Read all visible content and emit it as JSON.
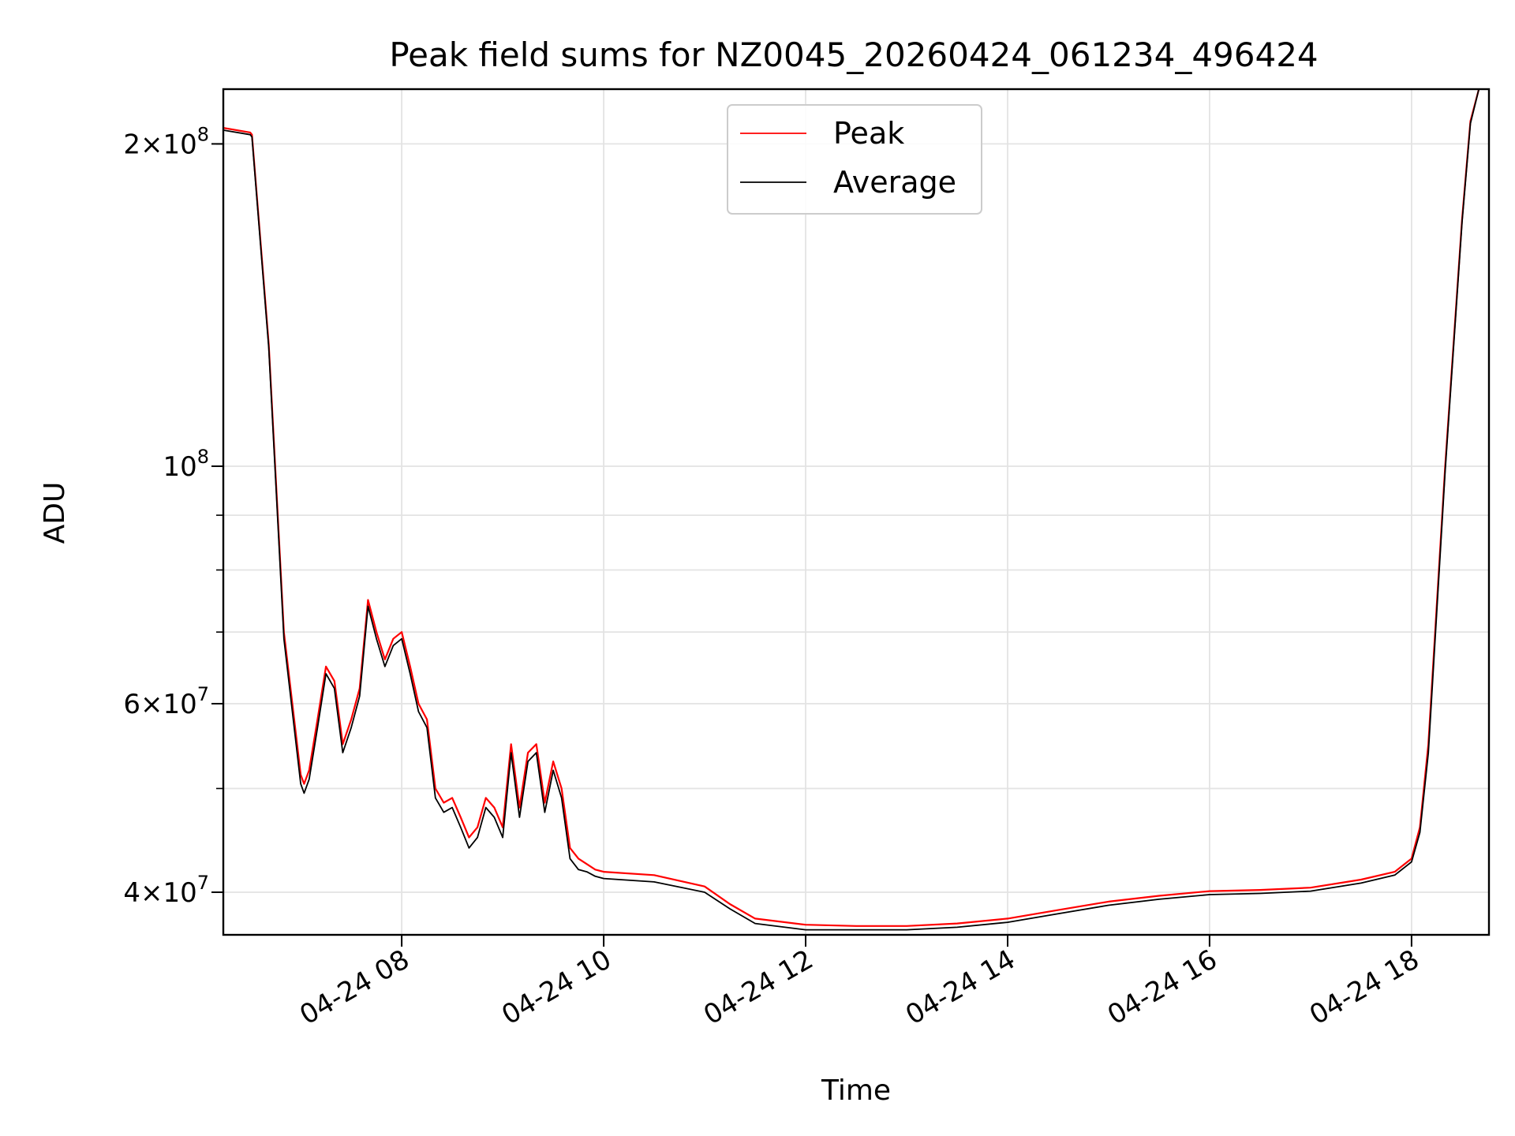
{
  "chart_data": {
    "type": "line",
    "title": "Peak field sums for NZ0045_20260424_061234_496424",
    "xlabel": "Time",
    "ylabel": "ADU",
    "y_scale": "log",
    "ylim": [
      36500000,
      225000000
    ],
    "xlim": [
      "2026-04-24 06:14",
      "2026-04-24 18:46"
    ],
    "x_ticks": [
      {
        "t": "2026-04-24 08:00",
        "label": "04-24 08"
      },
      {
        "t": "2026-04-24 10:00",
        "label": "04-24 10"
      },
      {
        "t": "2026-04-24 12:00",
        "label": "04-24 12"
      },
      {
        "t": "2026-04-24 14:00",
        "label": "04-24 14"
      },
      {
        "t": "2026-04-24 16:00",
        "label": "04-24 16"
      },
      {
        "t": "2026-04-24 18:00",
        "label": "04-24 18"
      }
    ],
    "y_major_ticks": [
      {
        "value": 200000000,
        "mantissa": "2",
        "exp": "8"
      },
      {
        "value": 100000000,
        "mantissa": "",
        "exp": "8"
      },
      {
        "value": 60000000,
        "mantissa": "6",
        "exp": "7"
      },
      {
        "value": 40000000,
        "mantissa": "4",
        "exp": "7"
      }
    ],
    "y_minor_ticks": [
      200000000,
      100000000,
      90000000,
      80000000,
      70000000,
      60000000,
      50000000,
      40000000
    ],
    "grid": true,
    "legend": "upper-center",
    "colors": {
      "peak": "#ff0000",
      "average": "#000000",
      "grid": "#e3e3e3"
    },
    "series": [
      {
        "name": "Peak",
        "color": "#ff0000",
        "x": [
          "2026-04-24 06:14",
          "2026-04-24 06:30",
          "2026-04-24 06:31",
          "2026-04-24 06:41",
          "2026-04-24 06:50",
          "2026-04-24 07:00",
          "2026-04-24 07:02",
          "2026-04-24 07:05",
          "2026-04-24 07:10",
          "2026-04-24 07:15",
          "2026-04-24 07:20",
          "2026-04-24 07:25",
          "2026-04-24 07:30",
          "2026-04-24 07:35",
          "2026-04-24 07:40",
          "2026-04-24 07:45",
          "2026-04-24 07:50",
          "2026-04-24 07:55",
          "2026-04-24 08:00",
          "2026-04-24 08:05",
          "2026-04-24 08:10",
          "2026-04-24 08:15",
          "2026-04-24 08:20",
          "2026-04-24 08:25",
          "2026-04-24 08:30",
          "2026-04-24 08:35",
          "2026-04-24 08:40",
          "2026-04-24 08:45",
          "2026-04-24 08:50",
          "2026-04-24 08:55",
          "2026-04-24 09:00",
          "2026-04-24 09:05",
          "2026-04-24 09:10",
          "2026-04-24 09:15",
          "2026-04-24 09:20",
          "2026-04-24 09:25",
          "2026-04-24 09:30",
          "2026-04-24 09:35",
          "2026-04-24 09:40",
          "2026-04-24 09:45",
          "2026-04-24 09:50",
          "2026-04-24 09:55",
          "2026-04-24 10:00",
          "2026-04-24 10:30",
          "2026-04-24 11:00",
          "2026-04-24 11:15",
          "2026-04-24 11:30",
          "2026-04-24 12:00",
          "2026-04-24 12:30",
          "2026-04-24 13:00",
          "2026-04-24 13:30",
          "2026-04-24 14:00",
          "2026-04-24 14:30",
          "2026-04-24 15:00",
          "2026-04-24 15:30",
          "2026-04-24 16:00",
          "2026-04-24 16:30",
          "2026-04-24 17:00",
          "2026-04-24 17:30",
          "2026-04-24 17:50",
          "2026-04-24 18:00",
          "2026-04-24 18:05",
          "2026-04-24 18:10",
          "2026-04-24 18:20",
          "2026-04-24 18:30",
          "2026-04-24 18:35",
          "2026-04-24 18:40"
        ],
        "values": [
          207000000,
          205000000,
          204000000,
          130000000,
          70000000,
          51500000,
          50500000,
          52000000,
          58000000,
          65000000,
          63000000,
          55000000,
          58000000,
          62000000,
          75000000,
          70000000,
          66000000,
          69000000,
          70000000,
          65000000,
          60000000,
          58000000,
          50000000,
          48500000,
          49000000,
          47000000,
          45000000,
          46000000,
          49000000,
          48000000,
          46000000,
          55000000,
          48000000,
          54000000,
          55000000,
          48500000,
          53000000,
          50000000,
          44000000,
          43000000,
          42500000,
          42000000,
          41800000,
          41500000,
          40500000,
          39000000,
          37800000,
          37300000,
          37200000,
          37200000,
          37400000,
          37800000,
          38500000,
          39200000,
          39700000,
          40100000,
          40200000,
          40400000,
          41100000,
          41800000,
          43000000,
          46000000,
          55000000,
          100000000,
          170000000,
          210000000,
          225000000
        ]
      },
      {
        "name": "Average",
        "color": "#000000",
        "x": [
          "2026-04-24 06:14",
          "2026-04-24 06:30",
          "2026-04-24 06:31",
          "2026-04-24 06:41",
          "2026-04-24 06:50",
          "2026-04-24 07:00",
          "2026-04-24 07:02",
          "2026-04-24 07:05",
          "2026-04-24 07:10",
          "2026-04-24 07:15",
          "2026-04-24 07:20",
          "2026-04-24 07:25",
          "2026-04-24 07:30",
          "2026-04-24 07:35",
          "2026-04-24 07:40",
          "2026-04-24 07:45",
          "2026-04-24 07:50",
          "2026-04-24 07:55",
          "2026-04-24 08:00",
          "2026-04-24 08:05",
          "2026-04-24 08:10",
          "2026-04-24 08:15",
          "2026-04-24 08:20",
          "2026-04-24 08:25",
          "2026-04-24 08:30",
          "2026-04-24 08:35",
          "2026-04-24 08:40",
          "2026-04-24 08:45",
          "2026-04-24 08:50",
          "2026-04-24 08:55",
          "2026-04-24 09:00",
          "2026-04-24 09:05",
          "2026-04-24 09:10",
          "2026-04-24 09:15",
          "2026-04-24 09:20",
          "2026-04-24 09:25",
          "2026-04-24 09:30",
          "2026-04-24 09:35",
          "2026-04-24 09:40",
          "2026-04-24 09:45",
          "2026-04-24 09:50",
          "2026-04-24 09:55",
          "2026-04-24 10:00",
          "2026-04-24 10:30",
          "2026-04-24 11:00",
          "2026-04-24 11:15",
          "2026-04-24 11:30",
          "2026-04-24 12:00",
          "2026-04-24 12:30",
          "2026-04-24 13:00",
          "2026-04-24 13:30",
          "2026-04-24 14:00",
          "2026-04-24 14:30",
          "2026-04-24 15:00",
          "2026-04-24 15:30",
          "2026-04-24 16:00",
          "2026-04-24 16:30",
          "2026-04-24 17:00",
          "2026-04-24 17:30",
          "2026-04-24 17:50",
          "2026-04-24 18:00",
          "2026-04-24 18:05",
          "2026-04-24 18:10",
          "2026-04-24 18:20",
          "2026-04-24 18:30",
          "2026-04-24 18:35",
          "2026-04-24 18:40"
        ],
        "values": [
          206000000,
          204000000,
          203000000,
          129000000,
          69000000,
          50500000,
          49500000,
          51000000,
          57000000,
          64000000,
          62000000,
          54000000,
          57000000,
          61000000,
          74000000,
          69000000,
          65000000,
          68000000,
          69000000,
          64000000,
          59000000,
          57000000,
          49000000,
          47500000,
          48000000,
          46000000,
          44000000,
          45000000,
          48000000,
          47000000,
          45000000,
          54000000,
          47000000,
          53000000,
          54000000,
          47500000,
          52000000,
          49000000,
          43000000,
          42000000,
          41800000,
          41400000,
          41200000,
          40900000,
          40000000,
          38600000,
          37400000,
          36900000,
          36900000,
          36900000,
          37100000,
          37500000,
          38200000,
          38900000,
          39400000,
          39800000,
          39900000,
          40100000,
          40800000,
          41500000,
          42700000,
          45500000,
          54000000,
          99000000,
          169000000,
          209000000,
          225000000
        ]
      }
    ]
  }
}
